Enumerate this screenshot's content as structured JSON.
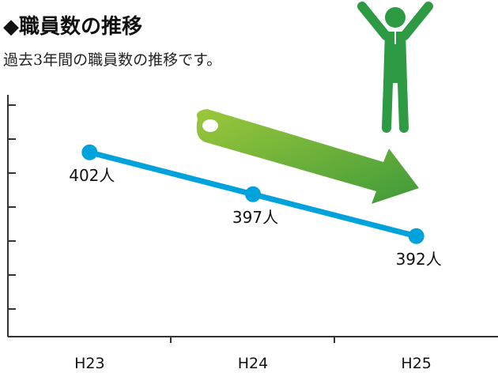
{
  "chart_data": {
    "type": "line",
    "title": "◆職員数の推移",
    "subtitle": "過去3年間の職員数の推移です。",
    "categories": [
      "H23",
      "H24",
      "H25"
    ],
    "values": [
      402,
      397,
      392
    ],
    "value_labels": [
      "402人",
      "397人",
      "392人"
    ],
    "color": "#00a2dc",
    "ylim": [
      380,
      410
    ]
  }
}
